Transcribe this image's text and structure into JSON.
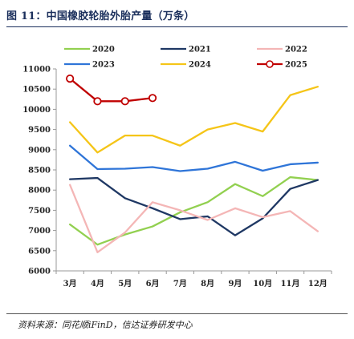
{
  "header": {
    "title": "图 11：中国橡胶轮胎外胎产量（万条）"
  },
  "footer": {
    "source": "资料来源：同花顺iFinD，信达证券研发中心"
  },
  "chart_data": {
    "type": "line",
    "title": "",
    "xlabel": "",
    "ylabel": "",
    "categories": [
      "3月",
      "4月",
      "5月",
      "6月",
      "7月",
      "8月",
      "9月",
      "10月",
      "11月",
      "12月"
    ],
    "ylim": [
      6000,
      11000
    ],
    "yticks": [
      6000,
      6500,
      7000,
      7500,
      8000,
      8500,
      9000,
      9500,
      10000,
      10500,
      11000
    ],
    "grid": false,
    "legend_position": "top",
    "series": [
      {
        "name": "2020",
        "color": "#92d050",
        "marker": false,
        "values": [
          7150,
          6650,
          6900,
          7100,
          7450,
          7700,
          8150,
          7850,
          8320,
          8250
        ]
      },
      {
        "name": "2021",
        "color": "#1f3864",
        "marker": false,
        "values": [
          8270,
          8300,
          7800,
          7550,
          7280,
          7350,
          6880,
          7300,
          8030,
          8250
        ]
      },
      {
        "name": "2022",
        "color": "#f4b6b6",
        "marker": false,
        "values": [
          8130,
          6460,
          6950,
          7700,
          7500,
          7260,
          7550,
          7330,
          7480,
          6980
        ]
      },
      {
        "name": "2023",
        "color": "#2f75d8",
        "marker": false,
        "values": [
          9100,
          8520,
          8530,
          8570,
          8470,
          8530,
          8700,
          8480,
          8640,
          8680
        ]
      },
      {
        "name": "2024",
        "color": "#f5c518",
        "marker": false,
        "values": [
          9680,
          8930,
          9350,
          9350,
          9100,
          9500,
          9660,
          9450,
          10350,
          10560
        ]
      },
      {
        "name": "2025",
        "color": "#c00000",
        "marker": true,
        "values": [
          10760,
          10200,
          10200,
          10280,
          null,
          null,
          null,
          null,
          null,
          null
        ]
      }
    ]
  }
}
